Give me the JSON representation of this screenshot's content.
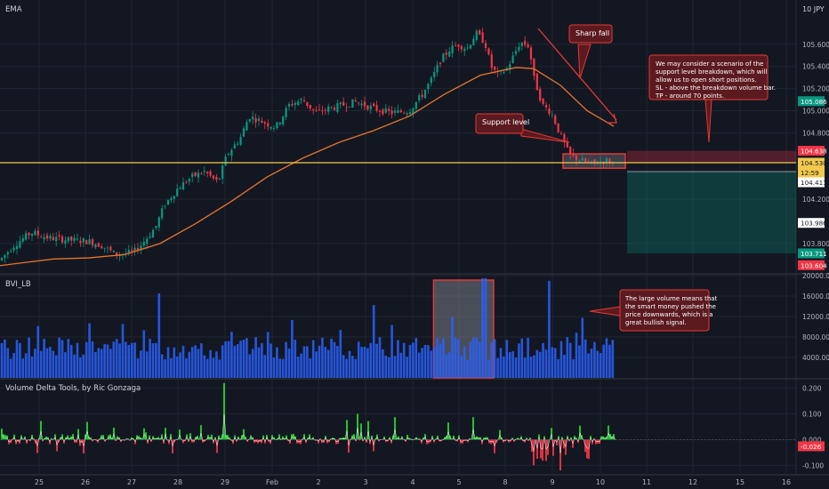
{
  "chart_data": [
    {
      "type": "line",
      "indicator_label": "EMA",
      "currency_label": "JPY",
      "top_label": "10",
      "ylim": [
        103.55,
        106.0
      ],
      "y_ticks": [
        "105.600",
        "105.400",
        "105.200",
        "105.000",
        "104.800",
        "104.200",
        "103.800"
      ],
      "y_tick_values": [
        105.6,
        105.4,
        105.2,
        105.0,
        104.8,
        104.2,
        103.8
      ],
      "price_badges": [
        {
          "text": "105.086",
          "value": 105.086,
          "color": "#089981",
          "text_color": "#ffffff"
        },
        {
          "text": "104.638",
          "value": 104.638,
          "color": "#f23645",
          "text_color": "#ffffff"
        },
        {
          "text": "104.530",
          "value": 104.53,
          "color": "#f2c94c",
          "text_color": "#131722"
        },
        {
          "text": "12:59",
          "value": 104.49,
          "color": "#f2c94c",
          "text_color": "#131722"
        },
        {
          "text": "104.411",
          "value": 104.411,
          "color": "#ffffff",
          "text_color": "#131722"
        },
        {
          "text": "103.986",
          "value": 103.986,
          "color": "#ffffff",
          "text_color": "#131722"
        },
        {
          "text": "103.711",
          "value": 103.711,
          "color": "#089981",
          "text_color": "#ffffff"
        },
        {
          "text": "103.604",
          "value": 103.604,
          "color": "#f23645",
          "text_color": "#ffffff"
        }
      ],
      "ema_points": [
        [
          0,
          103.6
        ],
        [
          30,
          103.63
        ],
        [
          60,
          103.66
        ],
        [
          100,
          103.67
        ],
        [
          140,
          103.7
        ],
        [
          180,
          103.8
        ],
        [
          220,
          103.98
        ],
        [
          260,
          104.18
        ],
        [
          300,
          104.4
        ],
        [
          340,
          104.57
        ],
        [
          380,
          104.71
        ],
        [
          420,
          104.82
        ],
        [
          460,
          104.95
        ],
        [
          500,
          105.15
        ],
        [
          540,
          105.32
        ],
        [
          580,
          105.39
        ],
        [
          600,
          105.38
        ],
        [
          630,
          105.23
        ],
        [
          660,
          105.0
        ],
        [
          690,
          104.86
        ]
      ],
      "price_points": [
        [
          0,
          103.65
        ],
        [
          15,
          103.78
        ],
        [
          35,
          103.9
        ],
        [
          55,
          103.85
        ],
        [
          80,
          103.83
        ],
        [
          100,
          103.82
        ],
        [
          115,
          103.78
        ],
        [
          130,
          103.7
        ],
        [
          150,
          103.72
        ],
        [
          160,
          103.8
        ],
        [
          175,
          103.95
        ],
        [
          185,
          104.15
        ],
        [
          200,
          104.3
        ],
        [
          215,
          104.4
        ],
        [
          230,
          104.45
        ],
        [
          245,
          104.35
        ],
        [
          255,
          104.6
        ],
        [
          270,
          104.75
        ],
        [
          280,
          104.95
        ],
        [
          295,
          104.9
        ],
        [
          310,
          104.85
        ],
        [
          325,
          105.05
        ],
        [
          340,
          105.1
        ],
        [
          355,
          104.98
        ],
        [
          370,
          105.02
        ],
        [
          385,
          105.05
        ],
        [
          400,
          105.08
        ],
        [
          420,
          105.02
        ],
        [
          440,
          104.98
        ],
        [
          460,
          105.0
        ],
        [
          475,
          105.15
        ],
        [
          485,
          105.28
        ],
        [
          495,
          105.45
        ],
        [
          505,
          105.55
        ],
        [
          515,
          105.6
        ],
        [
          525,
          105.56
        ],
        [
          535,
          105.7
        ],
        [
          545,
          105.62
        ],
        [
          552,
          105.4
        ],
        [
          560,
          105.32
        ],
        [
          570,
          105.38
        ],
        [
          585,
          105.62
        ],
        [
          595,
          105.58
        ],
        [
          600,
          105.3
        ],
        [
          610,
          105.05
        ],
        [
          620,
          104.98
        ],
        [
          630,
          104.78
        ],
        [
          640,
          104.6
        ],
        [
          650,
          104.56
        ],
        [
          665,
          104.52
        ],
        [
          680,
          104.55
        ],
        [
          690,
          104.53
        ]
      ],
      "horizontal_line_value": 104.53,
      "support_band": [
        104.48,
        104.61
      ],
      "short_risk_zone": [
        104.53,
        104.638
      ],
      "short_target_zone": [
        103.711,
        104.45
      ],
      "annotations": [
        {
          "text": "Sharp fall"
        },
        {
          "text": "Support level"
        },
        {
          "lines": [
            "We may consider a scenario of the",
            "support level breakdown, which will",
            "allow us to open short positions.",
            "SL - above the breakdown volume bar.",
            "TP - around 70 points."
          ]
        }
      ]
    },
    {
      "type": "bar",
      "indicator_label": "BVI_LB",
      "ylim": [
        0,
        20000
      ],
      "y_ticks": [
        "20000.000",
        "16000.000",
        "12000.000",
        "8000.000",
        "4000.000"
      ],
      "y_tick_values": [
        20000,
        16000,
        12000,
        8000,
        4000
      ],
      "highlight_range": [
        8.45,
        9.75
      ],
      "annotation": {
        "lines": [
          "The large volume means that",
          "the smart money pushed the",
          "price downwards, which is a",
          "great bullish signal."
        ]
      }
    },
    {
      "type": "area",
      "indicator_label": "Volume Delta Tools, by Ric Gonzaga",
      "ylim": [
        -0.13,
        0.23
      ],
      "y_ticks": [
        "0.200",
        "0.100",
        "0.000",
        "-0.100"
      ],
      "y_tick_values": [
        0.2,
        0.1,
        0.0,
        -0.1
      ],
      "badge": {
        "text": "-0.026",
        "value": -0.026,
        "color": "#f23645",
        "text_color": "#ffffff"
      }
    }
  ],
  "x_axis": {
    "labels": [
      "25",
      "26",
      "27",
      "28",
      "29",
      "Feb",
      "2",
      "3",
      "4",
      "5",
      "8",
      "9",
      "10",
      "11",
      "12",
      "15",
      "16"
    ]
  },
  "colors": {
    "background": "#131722",
    "up": "#089981",
    "down": "#f23645",
    "ema": "#e8742a",
    "volume": "#2962ff",
    "annot_bg": "#5b1a1f",
    "annot_border": "#e53935"
  }
}
